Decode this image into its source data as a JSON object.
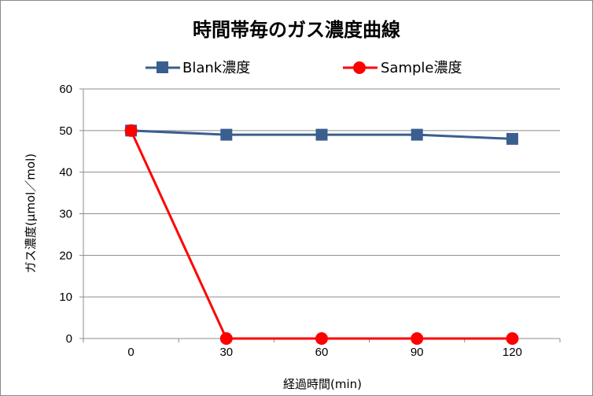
{
  "chart_data": {
    "type": "line",
    "title": "時間帯毎のガス濃度曲線",
    "xlabel": "経過時間(min)",
    "ylabel": "ガス濃度(μmol／mol)",
    "categories": [
      "0",
      "30",
      "60",
      "90",
      "120"
    ],
    "ylim": [
      0,
      60
    ],
    "yticks": [
      "0",
      "10",
      "20",
      "30",
      "40",
      "50",
      "60"
    ],
    "grid": true,
    "legend_position": "top",
    "series": [
      {
        "name": "Blank濃度",
        "values": [
          50,
          49,
          49,
          49,
          48
        ],
        "color": "#3a5f8f",
        "marker": "square"
      },
      {
        "name": "Sample濃度",
        "values": [
          50,
          0,
          0,
          0,
          0
        ],
        "color": "#ff0000",
        "marker": "circle"
      }
    ]
  }
}
